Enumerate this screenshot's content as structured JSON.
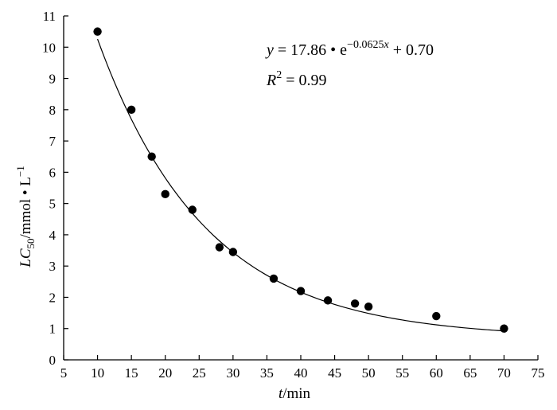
{
  "chart_data": {
    "type": "scatter",
    "xlabel": {
      "var": "t",
      "unit": "/min"
    },
    "ylabel": {
      "var": "LC",
      "sub": "50",
      "unit": "/mmol • L",
      "sup": "−1"
    },
    "xlim": [
      5,
      75
    ],
    "ylim": [
      0,
      11
    ],
    "xticks": [
      5,
      10,
      15,
      20,
      25,
      30,
      35,
      40,
      45,
      50,
      55,
      60,
      65,
      70,
      75
    ],
    "yticks": [
      0,
      1,
      2,
      3,
      4,
      5,
      6,
      7,
      8,
      9,
      10,
      11
    ],
    "grid": false,
    "points": [
      {
        "x": 10,
        "y": 10.5
      },
      {
        "x": 15,
        "y": 8.0
      },
      {
        "x": 18,
        "y": 6.5
      },
      {
        "x": 20,
        "y": 5.3
      },
      {
        "x": 24,
        "y": 4.8
      },
      {
        "x": 28,
        "y": 3.6
      },
      {
        "x": 30,
        "y": 3.45
      },
      {
        "x": 36,
        "y": 2.6
      },
      {
        "x": 40,
        "y": 2.2
      },
      {
        "x": 44,
        "y": 1.9
      },
      {
        "x": 48,
        "y": 1.8
      },
      {
        "x": 50,
        "y": 1.7
      },
      {
        "x": 60,
        "y": 1.4
      },
      {
        "x": 70,
        "y": 1.0
      }
    ],
    "fit": {
      "a": 17.86,
      "b": -0.0625,
      "c": 0.7,
      "x_range": [
        10,
        70
      ]
    },
    "equation": {
      "lhs": "y",
      "eq": " = 17.86 • e",
      "exp": "−0.0625",
      "exp_var": "x",
      "tail": " + 0.70"
    },
    "r2": {
      "label": "R",
      "sup": "2",
      "value": " = 0.99"
    }
  }
}
